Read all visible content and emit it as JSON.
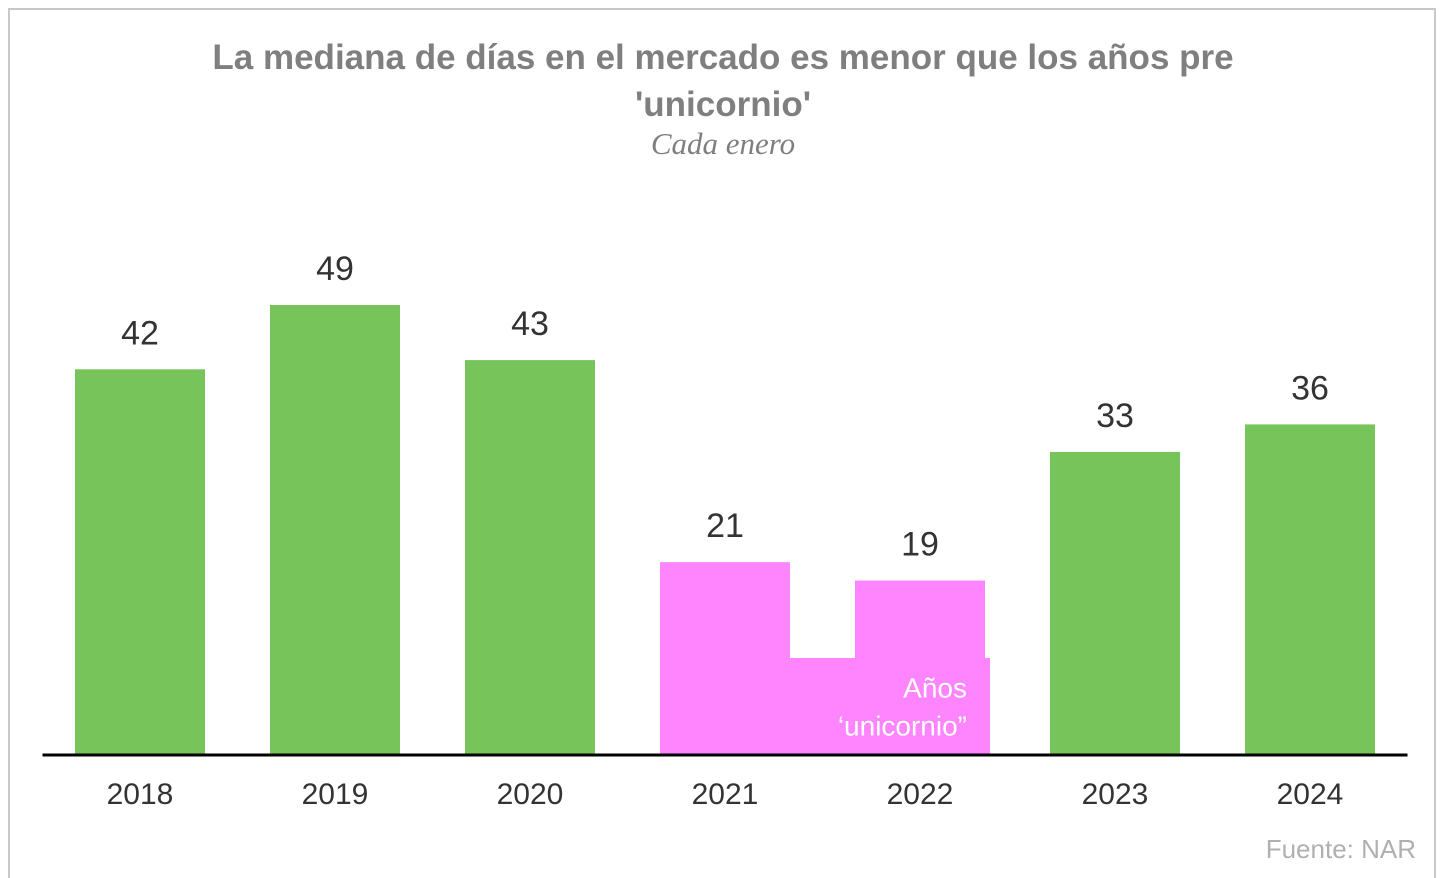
{
  "chart_data": {
    "type": "bar",
    "title": "La mediana de días en el mercado es menor que los años pre 'unicornio'",
    "subtitle": "Cada enero",
    "categories": [
      "2018",
      "2019",
      "2020",
      "2021",
      "2022",
      "2023",
      "2024"
    ],
    "values": [
      42,
      49,
      43,
      21,
      19,
      33,
      36
    ],
    "colors": [
      "#77c45a",
      "#77c45a",
      "#77c45a",
      "#ff85ff",
      "#ff85ff",
      "#77c45a",
      "#77c45a"
    ],
    "ylim": [
      0,
      60
    ],
    "annotation": [
      "Años",
      "‘unicornio”"
    ],
    "source": "Fuente: NAR"
  }
}
